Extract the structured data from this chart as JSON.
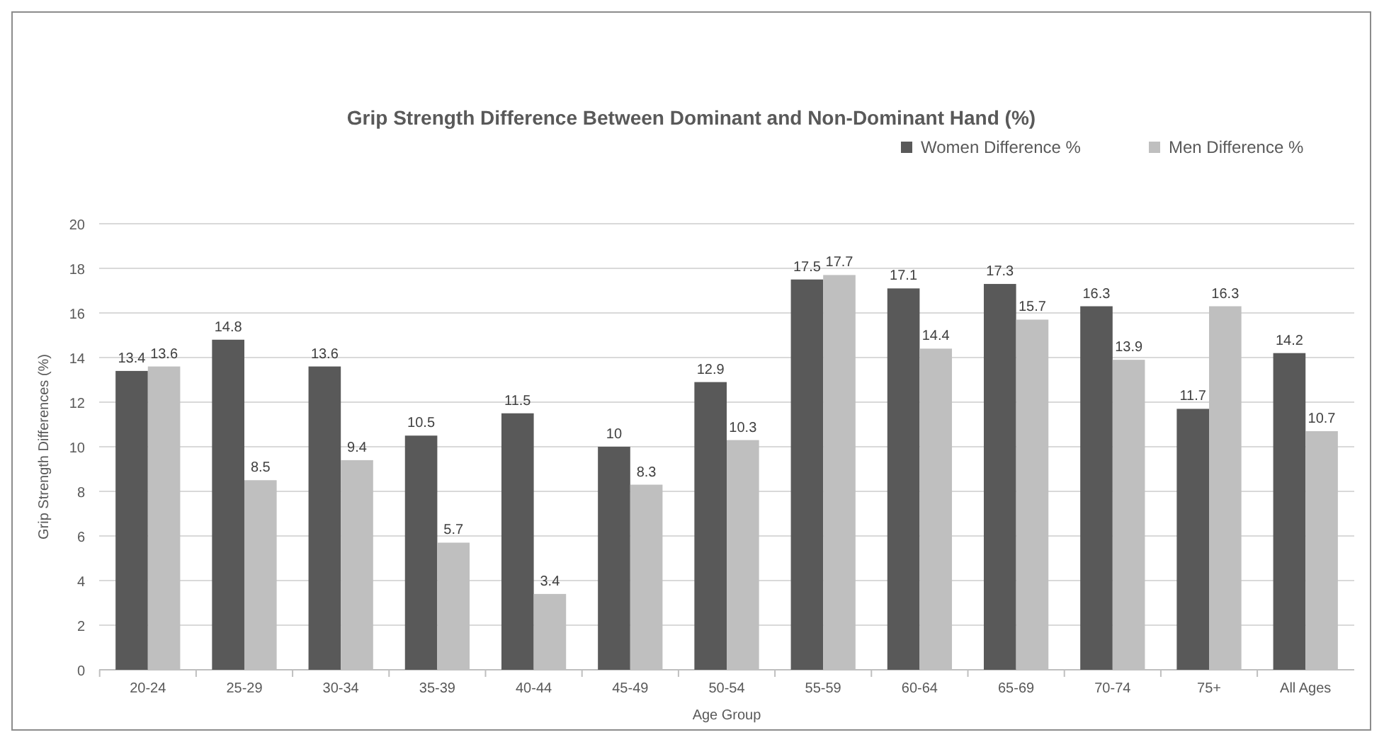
{
  "chart_data": {
    "type": "bar",
    "title": "Grip Strength Difference Between Dominant and Non-Dominant Hand (%)",
    "xlabel": "Age Group",
    "ylabel": "Grip Strength  Differences (%)",
    "categories": [
      "20-24",
      "25-29",
      "30-34",
      "35-39",
      "40-44",
      "45-49",
      "50-54",
      "55-59",
      "60-64",
      "65-69",
      "70-74",
      "75+",
      "All Ages"
    ],
    "series": [
      {
        "name": "Women Difference %",
        "color": "#595959",
        "values": [
          13.4,
          14.8,
          13.6,
          10.5,
          11.5,
          10,
          12.9,
          17.5,
          17.1,
          17.3,
          16.3,
          11.7,
          14.2
        ]
      },
      {
        "name": "Men Difference %",
        "color": "#bfbfbf",
        "values": [
          13.6,
          8.5,
          9.4,
          5.7,
          3.4,
          8.3,
          10.3,
          17.7,
          14.4,
          15.7,
          13.9,
          16.3,
          10.7
        ]
      }
    ],
    "ylim": [
      0,
      20
    ],
    "yticks": [
      0,
      2,
      4,
      6,
      8,
      10,
      12,
      14,
      16,
      18,
      20
    ],
    "grid": "y",
    "legend": "top right",
    "data_labels": true
  }
}
